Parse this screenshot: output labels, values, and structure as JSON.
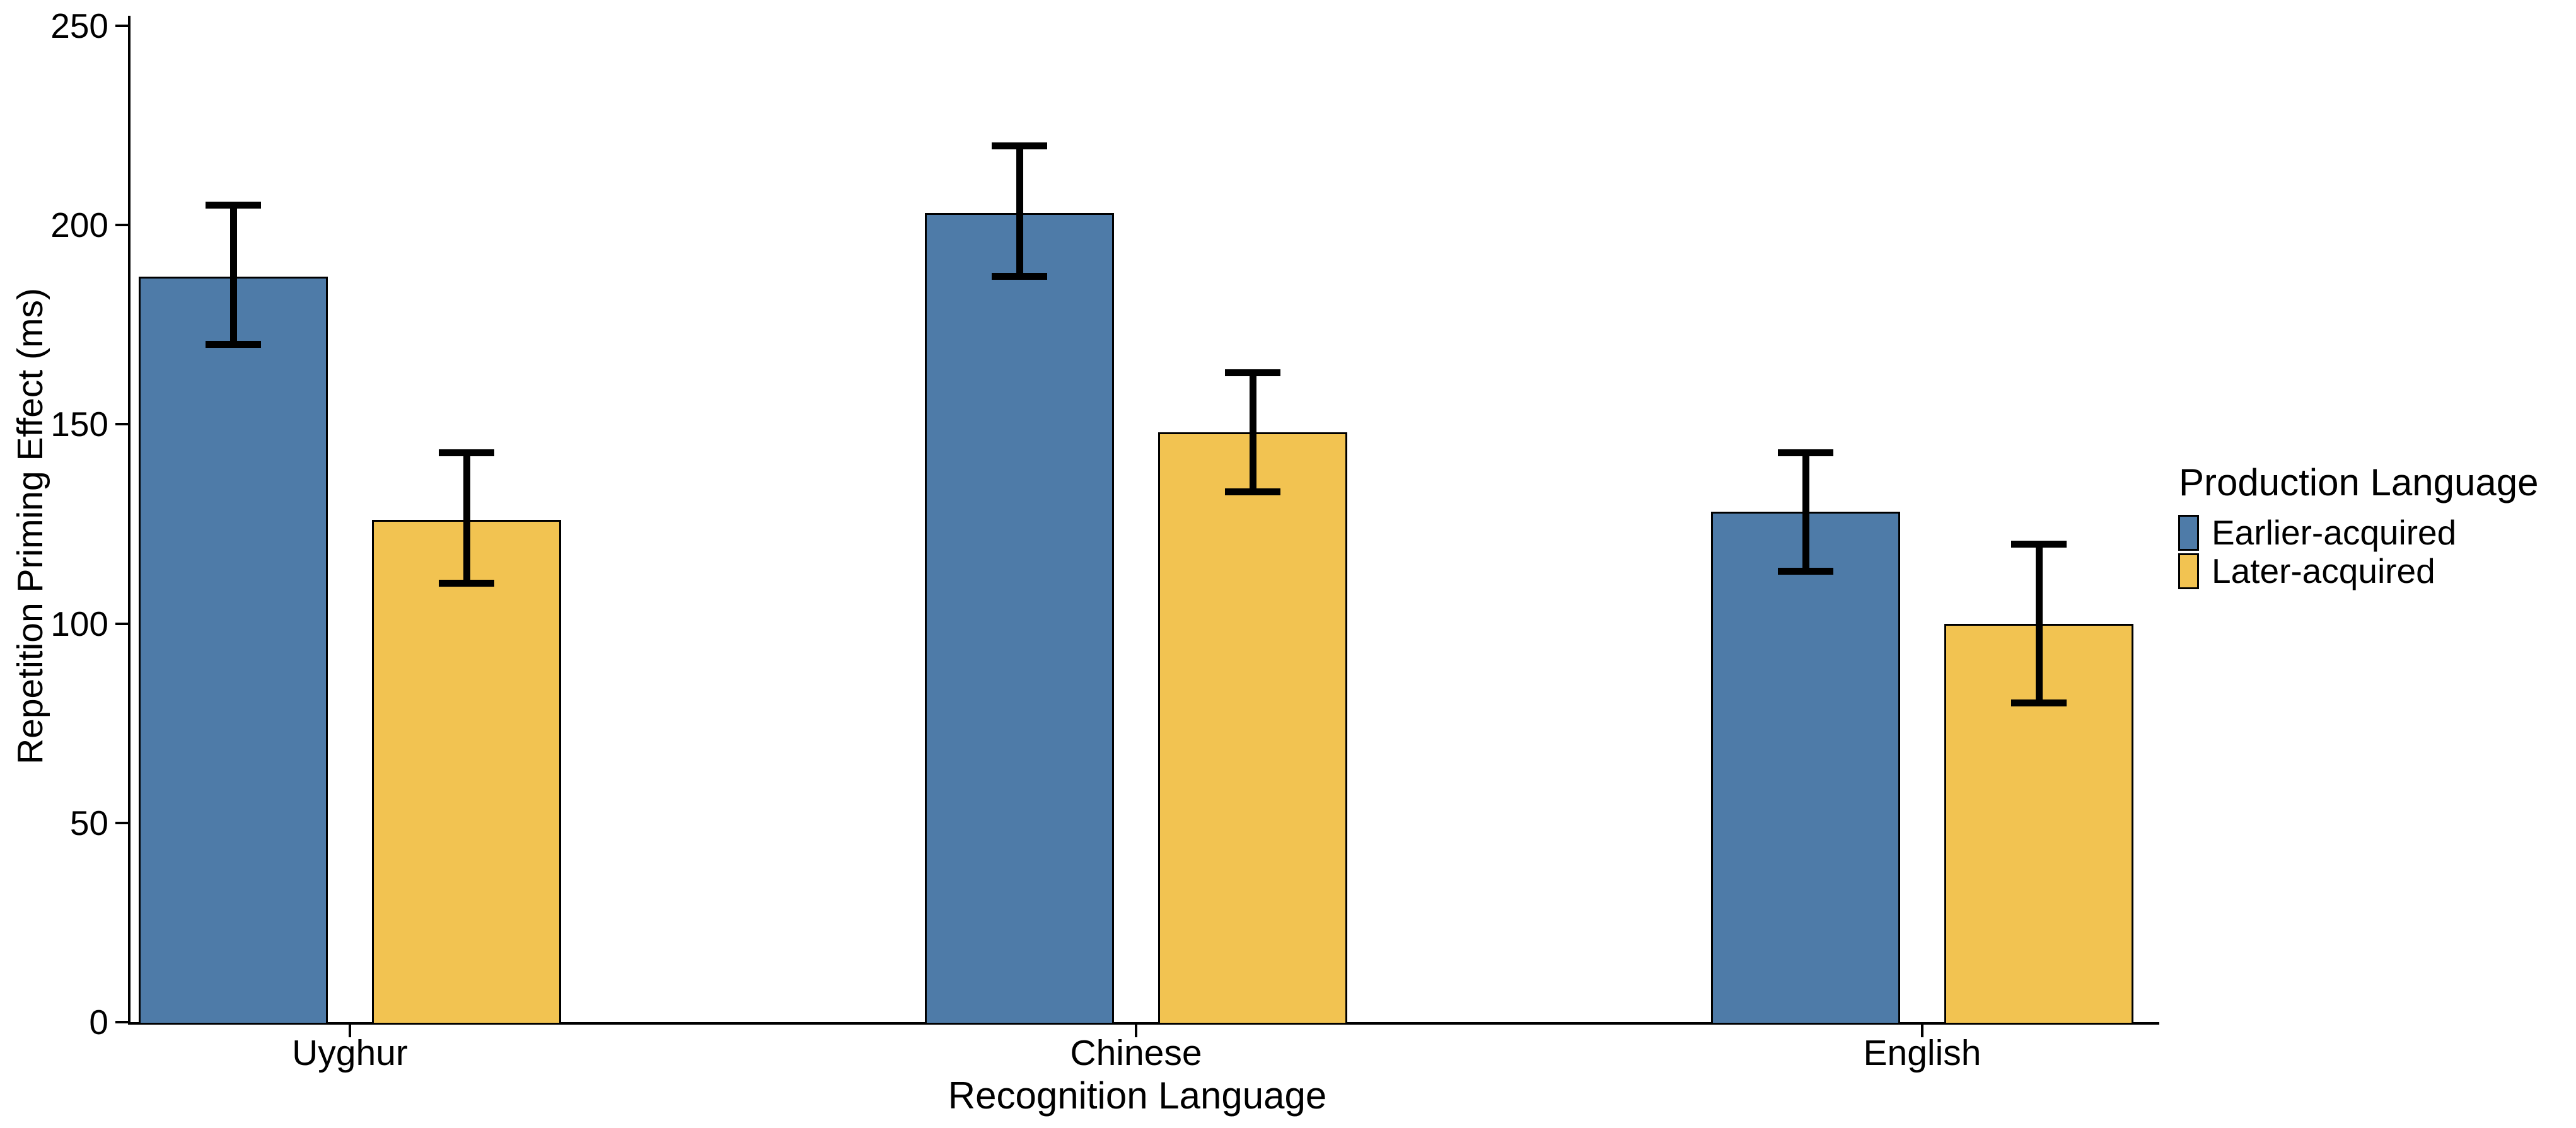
{
  "figure": {
    "background": "#ffffff",
    "text_color": "#000000"
  },
  "chart_data": {
    "type": "bar",
    "title": "",
    "xlabel": "Recognition Language",
    "ylabel": "Repetition Priming Effect (ms)",
    "categories": [
      "Uyghur",
      "Chinese",
      "English"
    ],
    "series": [
      {
        "name": "Earlier-acquired",
        "color": "#4e7ba8",
        "values": [
          187,
          203,
          128
        ],
        "error_low": [
          170,
          187,
          113
        ],
        "error_high": [
          205,
          220,
          143
        ]
      },
      {
        "name": "Later-acquired",
        "color": "#f2c351",
        "values": [
          126,
          148,
          100
        ],
        "error_low": [
          110,
          133,
          80
        ],
        "error_high": [
          143,
          163,
          120
        ]
      }
    ],
    "ylim": [
      0,
      250
    ],
    "yticks": [
      0,
      50,
      100,
      150,
      200,
      250
    ],
    "grid": false,
    "error_bars": true,
    "legend": {
      "title": "Production Language",
      "position": "right"
    }
  }
}
